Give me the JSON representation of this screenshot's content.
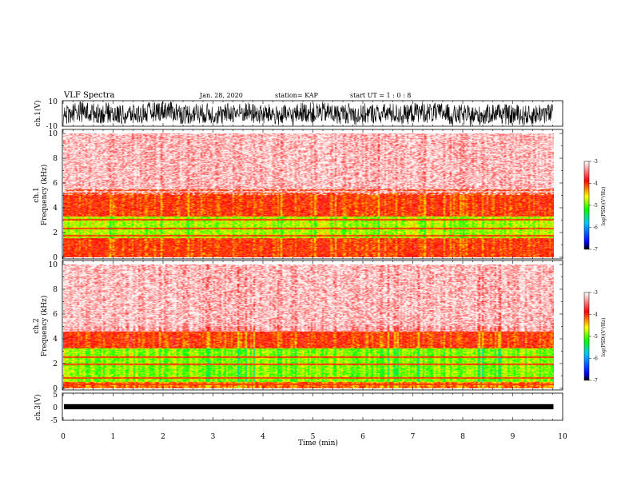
{
  "header": {
    "title": "VLF Spectra",
    "date": "Jan. 28, 2020",
    "station": "station= KAP",
    "start_ut": "start UT =   1 : 0   : 8"
  },
  "chart_data": [
    {
      "type": "line",
      "panel": "ch1-waveform",
      "ylabel": "ch.1(V)",
      "ytick_labels": [
        "10",
        "-10"
      ],
      "ylim": [
        -10,
        10
      ],
      "xlim": [
        0,
        10
      ],
      "series": [
        {
          "x_range": [
            0,
            9.8
          ],
          "y_envelope": [
            -10,
            10
          ],
          "color": "#000000"
        }
      ]
    },
    {
      "type": "heatmap",
      "panel": "ch1-spectrogram",
      "ylabel": "ch.1\nFrequency (kHz)",
      "ytick_labels": [
        "0",
        "2",
        "4",
        "6",
        "8",
        "10"
      ],
      "ylim": [
        0,
        10
      ],
      "xlim": [
        0,
        10
      ],
      "x_data_range": [
        0,
        9.8
      ],
      "bands_khz": [
        {
          "from": 0,
          "to": 1.5,
          "level": -4.0
        },
        {
          "from": 1.5,
          "to": 3.3,
          "level": -4.8
        },
        {
          "from": 3.3,
          "to": 5.2,
          "level": -4.0
        },
        {
          "from": 5.2,
          "to": 10,
          "level": -3.3
        }
      ],
      "lines_khz": [
        0.4,
        1.1,
        1.7,
        2.3,
        3.0,
        5.4
      ],
      "colorbar": {
        "label": "log(PSD)(V²/Hz)",
        "range": [
          -7,
          -3
        ],
        "tick_labels": [
          "-3",
          "-4",
          "-5",
          "-6",
          "-7"
        ],
        "colors": [
          "#000000",
          "#0000ff",
          "#00c8ff",
          "#00ff00",
          "#ffff00",
          "#ff0000",
          "#ffffff"
        ]
      }
    },
    {
      "type": "heatmap",
      "panel": "ch2-spectrogram",
      "ylabel": "ch.2\nFrequency (kHz)",
      "ytick_labels": [
        "0",
        "2",
        "4",
        "6",
        "8",
        "10"
      ],
      "ylim": [
        0,
        10
      ],
      "xlim": [
        0,
        10
      ],
      "x_data_range": [
        0,
        9.8
      ],
      "bands_khz": [
        {
          "from": 0,
          "to": 0.5,
          "level": -4.2
        },
        {
          "from": 0.5,
          "to": 3.2,
          "level": -4.9
        },
        {
          "from": 3.2,
          "to": 4.6,
          "level": -4.0
        },
        {
          "from": 4.6,
          "to": 10,
          "level": -3.3
        }
      ],
      "lines_khz": [
        0.3,
        0.8,
        1.9,
        2.5
      ],
      "colorbar": {
        "label": "log(PSD)(V²/Hz)",
        "range": [
          -7,
          -3
        ],
        "tick_labels": [
          "-3",
          "-4",
          "-5",
          "-6",
          "-7"
        ],
        "colors": [
          "#000000",
          "#0000ff",
          "#00c8ff",
          "#00ff00",
          "#ffff00",
          "#ff0000",
          "#ffffff"
        ]
      }
    },
    {
      "type": "line",
      "panel": "ch3-waveform",
      "ylabel": "ch.3(V)",
      "ytick_labels": [
        "5",
        "0",
        "-5"
      ],
      "ylim": [
        -5,
        5
      ],
      "xlim": [
        0,
        10
      ],
      "series": [
        {
          "x_range": [
            0,
            9.8
          ],
          "y_envelope": [
            -0.5,
            0.5
          ],
          "color": "#000000"
        }
      ]
    }
  ],
  "x_axis": {
    "label": "Time (min)",
    "tick_labels": [
      "0",
      "1",
      "2",
      "3",
      "4",
      "5",
      "6",
      "7",
      "8",
      "9",
      "10"
    ]
  }
}
